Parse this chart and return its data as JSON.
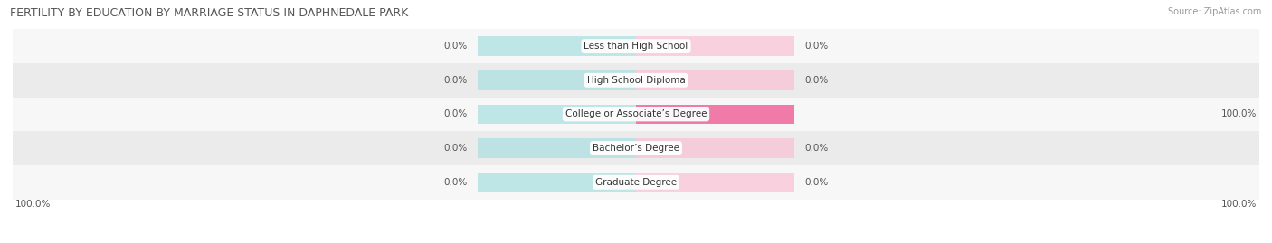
{
  "title": "FERTILITY BY EDUCATION BY MARRIAGE STATUS IN DAPHNEDALE PARK",
  "source": "Source: ZipAtlas.com",
  "categories": [
    "Less than High School",
    "High School Diploma",
    "College or Associate’s Degree",
    "Bachelor’s Degree",
    "Graduate Degree"
  ],
  "married_values": [
    0.0,
    0.0,
    0.0,
    0.0,
    0.0
  ],
  "unmarried_values": [
    0.0,
    0.0,
    100.0,
    0.0,
    0.0
  ],
  "married_color": "#5bbcbf",
  "unmarried_color": "#f07aa8",
  "married_bg_color": "#a8dfe0",
  "unmarried_bg_color": "#f9c0d4",
  "row_bg_odd": "#ebebeb",
  "row_bg_even": "#f7f7f7",
  "label_left_married": [
    0.0,
    0.0,
    0.0,
    0.0,
    0.0
  ],
  "label_right_unmarried": [
    0.0,
    0.0,
    100.0,
    0.0,
    0.0
  ],
  "bottom_left_label": "100.0%",
  "bottom_right_label": "100.0%",
  "max_value": 100.0,
  "figsize": [
    14.06,
    2.69
  ],
  "dpi": 100,
  "title_fontsize": 9,
  "label_fontsize": 7.5,
  "bar_label_fontsize": 7.5,
  "source_fontsize": 7,
  "legend_fontsize": 8
}
